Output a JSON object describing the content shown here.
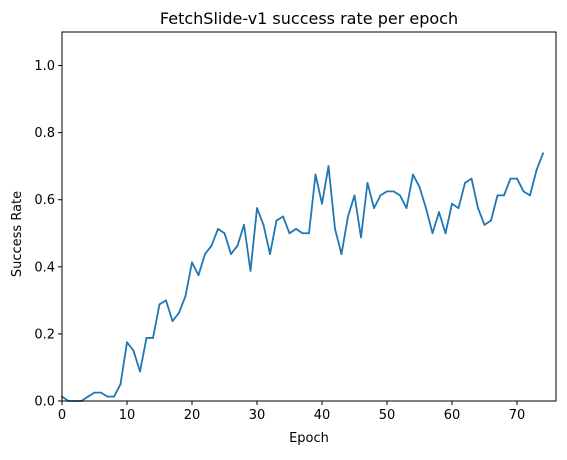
{
  "chart_data": {
    "type": "line",
    "title": "FetchSlide-v1 success rate per epoch",
    "xlabel": "Epoch",
    "ylabel": "Success Rate",
    "xlim": [
      0,
      76
    ],
    "ylim": [
      0,
      1.1
    ],
    "xticks": [
      0,
      10,
      20,
      30,
      40,
      50,
      60,
      70
    ],
    "yticks": [
      0.0,
      0.2,
      0.4,
      0.6,
      0.8,
      1.0
    ],
    "xtick_labels": [
      "0",
      "10",
      "20",
      "30",
      "40",
      "50",
      "60",
      "70"
    ],
    "ytick_labels": [
      "0.0",
      "0.2",
      "0.4",
      "0.6",
      "0.8",
      "1.0"
    ],
    "grid": false,
    "line_color": "#1f77b4",
    "series": [
      {
        "x": [
          0,
          1,
          2,
          3,
          4,
          5,
          6,
          7,
          8,
          9,
          10,
          11,
          12,
          13,
          14,
          15,
          16,
          17,
          18,
          19,
          20,
          21,
          22,
          23,
          24,
          25,
          26,
          27,
          28,
          29,
          30,
          31,
          32,
          33,
          34,
          35,
          36,
          37,
          38,
          39,
          40,
          41,
          42,
          43,
          44,
          45,
          46,
          47,
          48,
          49,
          50,
          51,
          52,
          53,
          54,
          55,
          56,
          57,
          58,
          59,
          60,
          61,
          62,
          63,
          64,
          65,
          66,
          67,
          68,
          69,
          70,
          71,
          72,
          73,
          74
        ],
        "values": [
          0.013,
          0.0,
          0.0,
          0.0,
          0.013,
          0.025,
          0.025,
          0.013,
          0.013,
          0.05,
          0.175,
          0.15,
          0.088,
          0.188,
          0.188,
          0.288,
          0.3,
          0.238,
          0.263,
          0.313,
          0.413,
          0.375,
          0.438,
          0.463,
          0.513,
          0.5,
          0.438,
          0.463,
          0.525,
          0.388,
          0.575,
          0.525,
          0.438,
          0.538,
          0.55,
          0.5,
          0.513,
          0.5,
          0.5,
          0.675,
          0.588,
          0.7,
          0.513,
          0.438,
          0.55,
          0.613,
          0.488,
          0.65,
          0.575,
          0.613,
          0.625,
          0.625,
          0.613,
          0.575,
          0.675,
          0.638,
          0.575,
          0.5,
          0.563,
          0.5,
          0.588,
          0.575,
          0.65,
          0.663,
          0.575,
          0.525,
          0.538,
          0.613,
          0.613,
          0.663,
          0.663,
          0.625,
          0.613,
          0.688,
          0.738
        ]
      }
    ]
  }
}
